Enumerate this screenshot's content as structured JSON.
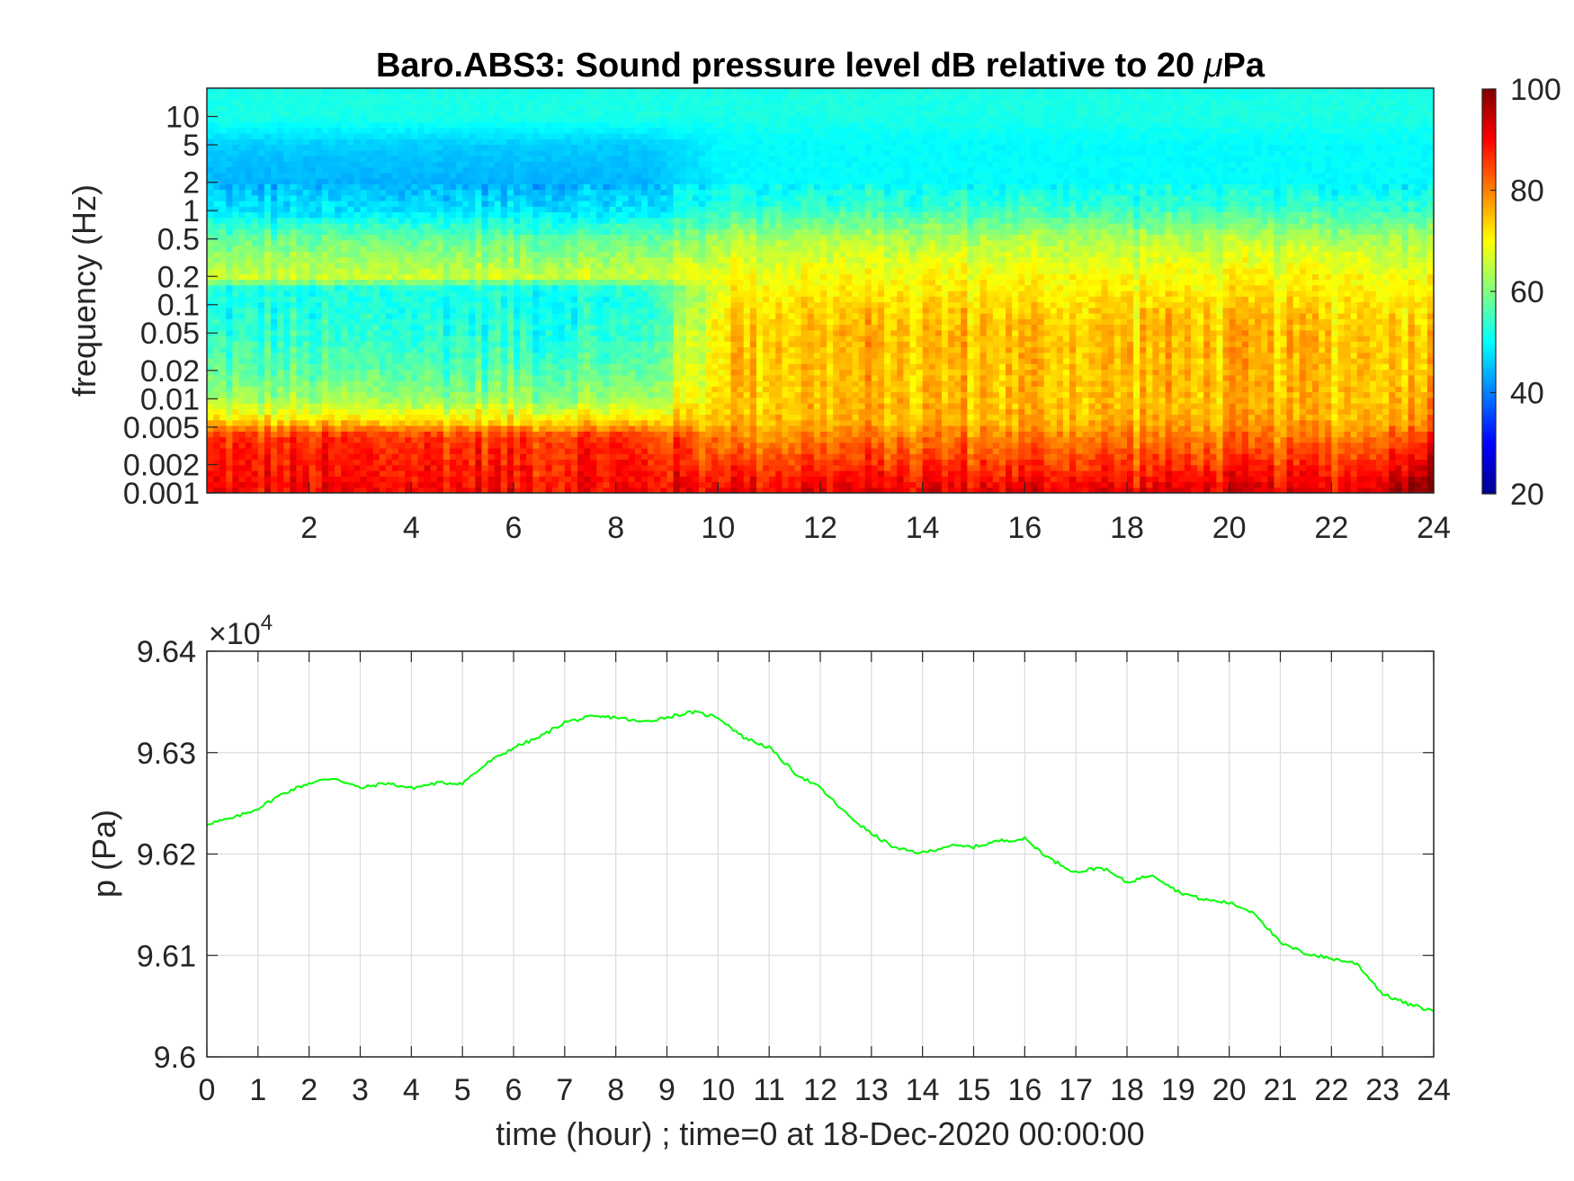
{
  "chart_data": [
    {
      "type": "heatmap",
      "title": "Baro.ABS3: Sound pressure level dB relative to 20 ",
      "title_mu": "μ",
      "title_unit": "Pa",
      "xlabel": "",
      "ylabel": "frequency (Hz)",
      "xlim": [
        0,
        24
      ],
      "ylim": [
        0.001,
        20
      ],
      "yscale": "log",
      "x_ticks": [
        2,
        4,
        6,
        8,
        10,
        12,
        14,
        16,
        18,
        20,
        22,
        24
      ],
      "x_tick_labels": [
        "2",
        "4",
        "6",
        "8",
        "10",
        "12",
        "14",
        "16",
        "18",
        "20",
        "22",
        "24"
      ],
      "y_ticks": [
        0.001,
        0.002,
        0.005,
        0.01,
        0.02,
        0.05,
        0.1,
        0.2,
        0.5,
        1,
        2,
        5,
        10
      ],
      "y_tick_labels": [
        "0.001",
        "0.002",
        "0.005",
        "0.01",
        "0.02",
        "0.05",
        "0.1",
        "0.2",
        "0.5",
        "1",
        "2",
        "5",
        "10"
      ],
      "colormap": "jet",
      "colorbar": {
        "range": [
          20,
          100
        ],
        "ticks": [
          20,
          40,
          60,
          80,
          100
        ],
        "tick_labels": [
          "20",
          "40",
          "60",
          "80",
          "100"
        ],
        "position": "right"
      },
      "level_profile_db": {
        "frequency_hz": [
          0.001,
          0.002,
          0.004,
          0.006,
          0.01,
          0.02,
          0.05,
          0.1,
          0.15,
          0.2,
          0.5,
          1,
          2,
          5,
          10,
          20
        ],
        "quiet_period_0_9h": [
          90,
          88,
          86,
          72,
          62,
          57,
          53,
          52,
          52,
          66,
          58,
          48,
          44,
          46,
          52,
          52
        ],
        "active_period_9_24h": [
          92,
          86,
          80,
          76,
          75,
          75,
          75,
          73,
          71,
          70,
          64,
          55,
          50,
          50,
          52,
          52
        ]
      }
    },
    {
      "type": "line",
      "title": "",
      "xlabel": "time (hour) ; time=0 at 18-Dec-2020 00:00:00",
      "ylabel": "p (Pa)",
      "y_multiplier": "×10",
      "y_multiplier_exp": "4",
      "xlim": [
        0,
        24
      ],
      "ylim": [
        9.6,
        9.64
      ],
      "grid": true,
      "line_color": "#00ff00",
      "x_ticks": [
        0,
        1,
        2,
        3,
        4,
        5,
        6,
        7,
        8,
        9,
        10,
        11,
        12,
        13,
        14,
        15,
        16,
        17,
        18,
        19,
        20,
        21,
        22,
        23,
        24
      ],
      "x_tick_labels": [
        "0",
        "1",
        "2",
        "3",
        "4",
        "5",
        "6",
        "7",
        "8",
        "9",
        "10",
        "11",
        "12",
        "13",
        "14",
        "15",
        "16",
        "17",
        "18",
        "19",
        "20",
        "21",
        "22",
        "23",
        "24"
      ],
      "y_ticks": [
        9.6,
        9.61,
        9.62,
        9.63,
        9.64
      ],
      "y_tick_labels": [
        "9.6",
        "9.61",
        "9.62",
        "9.63",
        "9.64"
      ],
      "series": [
        {
          "x": [
            0,
            0.5,
            1,
            1.5,
            2,
            2.5,
            3,
            3.5,
            4,
            4.5,
            5,
            5.5,
            6,
            6.5,
            7,
            7.5,
            8,
            8.5,
            9,
            9.5,
            10,
            10.5,
            11,
            11.5,
            12,
            12.5,
            13,
            13.5,
            14,
            14.5,
            15,
            15.5,
            16,
            16.5,
            17,
            17.5,
            18,
            18.5,
            19,
            19.5,
            20,
            20.5,
            21,
            21.5,
            22,
            22.5,
            23,
            23.5,
            24
          ],
          "y": [
            9.623,
            9.6235,
            9.6245,
            9.626,
            9.627,
            9.6275,
            9.6265,
            9.627,
            9.6265,
            9.627,
            9.627,
            9.629,
            9.6305,
            9.6315,
            9.633,
            9.6335,
            9.6335,
            9.633,
            9.6335,
            9.634,
            9.6335,
            9.6315,
            9.6305,
            9.628,
            9.6265,
            9.624,
            9.622,
            9.6205,
            9.6201,
            9.6208,
            9.6207,
            9.6213,
            9.6215,
            9.6195,
            9.6182,
            9.6187,
            9.6172,
            9.618,
            9.6163,
            9.6155,
            9.6152,
            9.6142,
            9.6112,
            9.6102,
            9.6097,
            9.6092,
            9.6062,
            9.6052,
            9.6045
          ]
        }
      ]
    }
  ]
}
